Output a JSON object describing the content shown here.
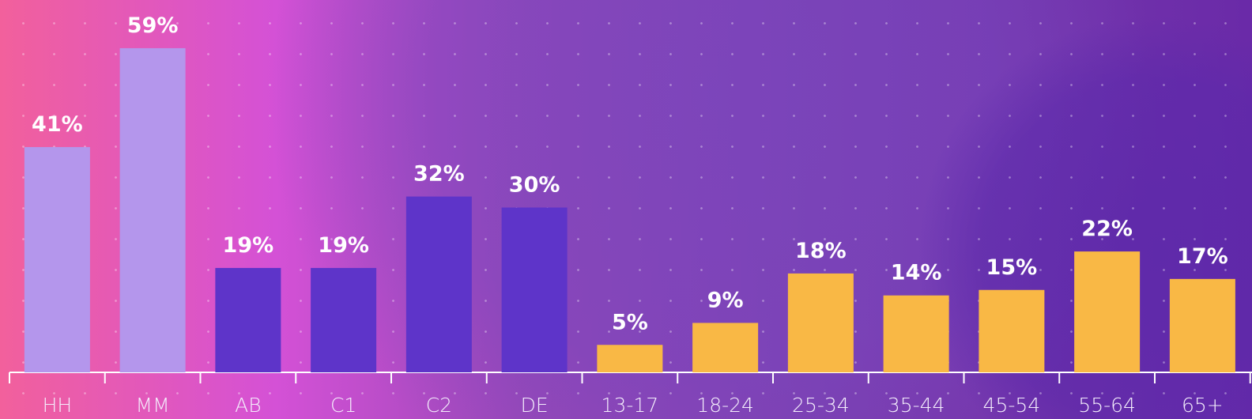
{
  "chart_data": {
    "type": "bar",
    "categories": [
      "HH",
      "MM",
      "AB",
      "C1",
      "C2",
      "DE",
      "13-17",
      "18-24",
      "25-34",
      "35-44",
      "45-54",
      "55-64",
      "65+"
    ],
    "values": [
      41,
      59,
      19,
      19,
      32,
      30,
      5,
      9,
      18,
      14,
      15,
      22,
      17
    ],
    "value_labels": [
      "41%",
      "59%",
      "19%",
      "19%",
      "32%",
      "30%",
      "5%",
      "9%",
      "18%",
      "14%",
      "15%",
      "22%",
      "17%"
    ],
    "colors": [
      "#b496ec",
      "#b496ec",
      "#5e34c9",
      "#5e34c9",
      "#5e34c9",
      "#5e34c9",
      "#f9b845",
      "#f9b845",
      "#f9b845",
      "#f9b845",
      "#f9b845",
      "#f9b845",
      "#f9b845"
    ]
  }
}
